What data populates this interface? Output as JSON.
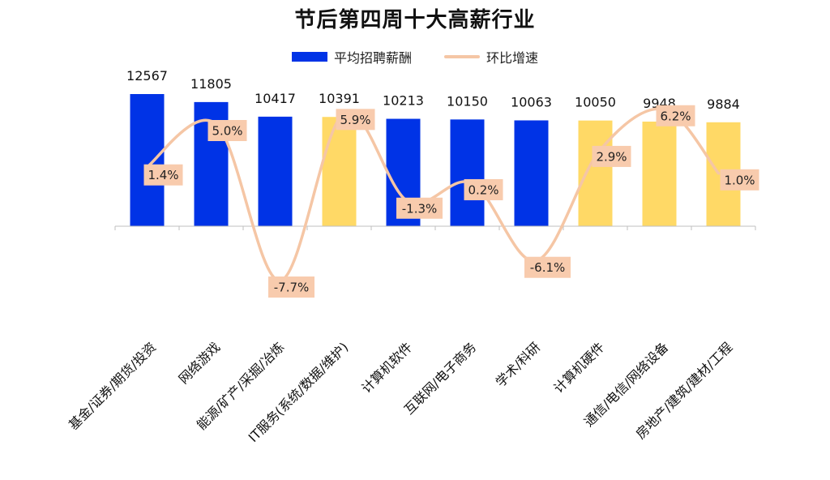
{
  "chart_data": {
    "type": "bar",
    "title": "节后第四周十大高薪行业",
    "categories": [
      "基金/证券/期货/投资",
      "网络游戏",
      "能源/矿产/采掘/冶炼",
      "IT服务(系统/数据/维护)",
      "计算机软件",
      "互联网/电子商务",
      "学术/科研",
      "计算机硬件",
      "通信/电信/网络设备",
      "房地产/建筑/建材/工程"
    ],
    "series": [
      {
        "name": "平均招聘薪酬",
        "type": "bar",
        "values": [
          12567,
          11805,
          10417,
          10391,
          10213,
          10150,
          10063,
          10050,
          9948,
          9884
        ],
        "value_labels": [
          "12567",
          "11805",
          "10417",
          "10391",
          "10213",
          "10150",
          "10063",
          "10050",
          "9948",
          "9884"
        ]
      },
      {
        "name": "环比增速",
        "type": "line",
        "values": [
          1.4,
          5.0,
          -7.7,
          5.9,
          -1.3,
          0.2,
          -6.1,
          2.9,
          6.2,
          1.0
        ],
        "value_labels": [
          "1.4%",
          "5.0%",
          "-7.7%",
          "5.9%",
          "-1.3%",
          "0.2%",
          "-6.1%",
          "2.9%",
          "6.2%",
          "1.0%"
        ]
      }
    ],
    "bar_colors": [
      "#0033e6",
      "#0033e6",
      "#0033e6",
      "#ffd966",
      "#0033e6",
      "#0033e6",
      "#0033e6",
      "#ffd966",
      "#ffd966",
      "#ffd966"
    ],
    "colors": {
      "bar": "#0033e6",
      "bar_highlight": "#ffd966",
      "line": "#f5c6a5",
      "label_box": "#f8cbad"
    },
    "legend_position": "top-center",
    "grid": false
  }
}
